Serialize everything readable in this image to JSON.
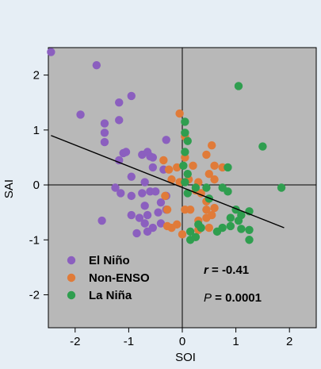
{
  "chart_data": {
    "type": "scatter",
    "title": "",
    "xlabel": "SOI",
    "ylabel": "SAI",
    "xlim": [
      -2.5,
      2.5
    ],
    "ylim": [
      -2.6,
      2.5
    ],
    "xticks": [
      -2,
      -1,
      0,
      1,
      2
    ],
    "yticks": [
      -2,
      -1,
      0,
      1,
      2
    ],
    "grid": false,
    "reference_lines": {
      "x0": true,
      "y0": true
    },
    "plot_background": "#b8b8b8",
    "legend_position": "bottom-left",
    "series": [
      {
        "name": "El Niño",
        "color": "#8b5fbf",
        "points": [
          [
            -2.45,
            2.42
          ],
          [
            -1.6,
            2.18
          ],
          [
            -1.9,
            1.28
          ],
          [
            -1.45,
            1.12
          ],
          [
            -1.45,
            0.95
          ],
          [
            -1.45,
            0.78
          ],
          [
            -1.18,
            1.18
          ],
          [
            -1.18,
            1.5
          ],
          [
            -0.95,
            1.62
          ],
          [
            -1.1,
            0.58
          ],
          [
            -1.05,
            0.6
          ],
          [
            -1.18,
            0.45
          ],
          [
            -0.75,
            0.55
          ],
          [
            -0.65,
            0.6
          ],
          [
            -0.6,
            0.52
          ],
          [
            -0.55,
            0.5
          ],
          [
            -0.3,
            0.82
          ],
          [
            -0.35,
            0.28
          ],
          [
            -0.55,
            0.32
          ],
          [
            -0.95,
            0.15
          ],
          [
            -0.7,
            0.05
          ],
          [
            -1.25,
            -0.05
          ],
          [
            -1.15,
            -0.15
          ],
          [
            -0.95,
            -0.2
          ],
          [
            -0.75,
            -0.15
          ],
          [
            -0.6,
            -0.12
          ],
          [
            -0.5,
            -0.12
          ],
          [
            -0.4,
            -0.32
          ],
          [
            -0.3,
            -0.2
          ],
          [
            -0.7,
            -0.38
          ],
          [
            -0.95,
            -0.55
          ],
          [
            -0.8,
            -0.6
          ],
          [
            -0.65,
            -0.55
          ],
          [
            -0.45,
            -0.5
          ],
          [
            -0.3,
            -0.45
          ],
          [
            -1.5,
            -0.65
          ],
          [
            -0.55,
            -0.78
          ],
          [
            -0.65,
            -0.85
          ],
          [
            -0.85,
            -0.88
          ],
          [
            -0.7,
            -0.7
          ],
          [
            -0.4,
            -0.7
          ]
        ]
      },
      {
        "name": "Non-ENSO",
        "color": "#e07b39",
        "points": [
          [
            -0.05,
            1.3
          ],
          [
            0.05,
            0.88
          ],
          [
            0.05,
            0.5
          ],
          [
            0.2,
            0.35
          ],
          [
            -0.1,
            0.32
          ],
          [
            -0.35,
            0.45
          ],
          [
            -0.25,
            0.28
          ],
          [
            -0.2,
            0.1
          ],
          [
            -0.05,
            0.05
          ],
          [
            0.12,
            0.1
          ],
          [
            0.45,
            0.55
          ],
          [
            0.6,
            0.35
          ],
          [
            0.5,
            0.2
          ],
          [
            0.55,
            0.72
          ],
          [
            0.75,
            0.32
          ],
          [
            0.6,
            0.1
          ],
          [
            0.3,
            0.05
          ],
          [
            0.25,
            -0.1
          ],
          [
            0.35,
            -0.15
          ],
          [
            0.45,
            -0.3
          ],
          [
            0.05,
            -0.45
          ],
          [
            0.15,
            -0.45
          ],
          [
            0.45,
            -0.45
          ],
          [
            0.6,
            -0.42
          ],
          [
            0.55,
            -0.55
          ],
          [
            0.45,
            -0.6
          ],
          [
            0.3,
            -0.65
          ],
          [
            -0.28,
            -0.45
          ],
          [
            -0.1,
            -0.72
          ],
          [
            -0.2,
            -0.78
          ],
          [
            -0.28,
            -0.75
          ],
          [
            -0.32,
            -0.2
          ],
          [
            0.0,
            -0.9
          ],
          [
            0.3,
            -0.82
          ],
          [
            0.5,
            -0.78
          ]
        ]
      },
      {
        "name": "La Niña",
        "color": "#2f9e4f",
        "points": [
          [
            1.05,
            1.8
          ],
          [
            1.5,
            0.7
          ],
          [
            0.05,
            1.15
          ],
          [
            0.05,
            0.95
          ],
          [
            0.1,
            0.8
          ],
          [
            0.05,
            0.6
          ],
          [
            0.02,
            0.35
          ],
          [
            0.1,
            0.2
          ],
          [
            0.05,
            0.05
          ],
          [
            0.25,
            -0.05
          ],
          [
            0.45,
            -0.05
          ],
          [
            0.1,
            -0.15
          ],
          [
            0.75,
            -0.05
          ],
          [
            0.85,
            -0.12
          ],
          [
            0.5,
            -0.25
          ],
          [
            0.85,
            0.32
          ],
          [
            1.85,
            -0.05
          ],
          [
            1.25,
            -0.48
          ],
          [
            1.1,
            -0.55
          ],
          [
            0.9,
            -0.6
          ],
          [
            1.05,
            -0.65
          ],
          [
            0.9,
            -0.75
          ],
          [
            0.75,
            -0.78
          ],
          [
            0.65,
            -0.85
          ],
          [
            1.1,
            -0.8
          ],
          [
            1.25,
            -0.82
          ],
          [
            0.3,
            -0.72
          ],
          [
            0.35,
            -0.78
          ],
          [
            0.15,
            -0.85
          ],
          [
            0.25,
            -0.95
          ],
          [
            0.15,
            -1.0
          ],
          [
            1.25,
            -1.0
          ],
          [
            1.0,
            -0.45
          ]
        ]
      }
    ],
    "regression_line": {
      "x": [
        -2.45,
        1.9
      ],
      "y": [
        0.9,
        -0.78
      ],
      "color": "#000000"
    },
    "annotations": {
      "r_symbol": "r",
      "r_value": " = -0.41",
      "p_symbol": "P",
      "p_value": " = 0.0001"
    }
  }
}
